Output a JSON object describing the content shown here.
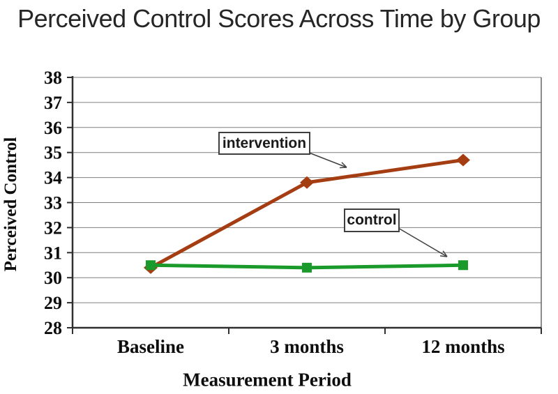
{
  "title": "Perceived Control Scores Across Time by Group",
  "chart_data": {
    "type": "line",
    "title": "Perceived Control Scores Across Time by Group",
    "xlabel": "Measurement Period",
    "ylabel": "Perceived Control",
    "categories": [
      "Baseline",
      "3 months",
      "12 months"
    ],
    "series": [
      {
        "name": "intervention",
        "values": [
          30.4,
          33.8,
          34.7
        ],
        "color": "#A53D13",
        "marker": "diamond"
      },
      {
        "name": "control",
        "values": [
          30.5,
          30.4,
          30.5
        ],
        "color": "#1B9A2C",
        "marker": "square"
      }
    ],
    "ylim": [
      28,
      38
    ],
    "ytick_step": 1,
    "yticks": [
      28,
      29,
      30,
      31,
      32,
      33,
      34,
      35,
      36,
      37,
      38
    ],
    "grid": "horizontal",
    "legend_position": "none-inline-annotations"
  },
  "annotations": {
    "intervention": {
      "label": "intervention"
    },
    "control": {
      "label": "control"
    }
  },
  "colors": {
    "intervention_line": "#A53D13",
    "control_line": "#1B9A2C",
    "gridline": "#7f7f7f",
    "axis_line": "#2f2f2f",
    "title_text": "#262626",
    "annotation_border": "#3f3f3f",
    "arrow": "#404040"
  }
}
